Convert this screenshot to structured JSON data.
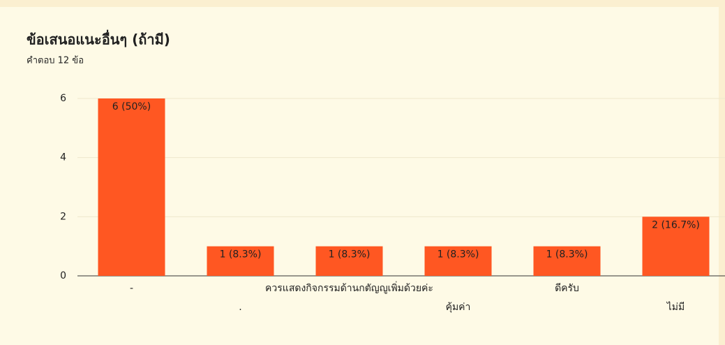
{
  "chart_data": {
    "type": "bar",
    "title": "ข้อเสนอแนะอื่นๆ (ถ้ามี)",
    "subtitle": "คำตอบ 12 ข้อ",
    "categories": [
      "-",
      ".",
      "ควรแสดงกิจกรรมด้านกตัญญูเพิ่มด้วยค่ะ",
      "คุ้มค่า",
      "ดีครับ",
      "ไม่มี"
    ],
    "values": [
      6,
      1,
      1,
      1,
      1,
      2
    ],
    "value_labels": [
      "6 (50%)",
      "1 (8.3%)",
      "1 (8.3%)",
      "1 (8.3%)",
      "1 (8.3%)",
      "2 (16.7%)"
    ],
    "color": "#ff5722",
    "ylim": [
      0,
      6
    ],
    "yticks": [
      0,
      2,
      4,
      6
    ],
    "grid": true
  }
}
